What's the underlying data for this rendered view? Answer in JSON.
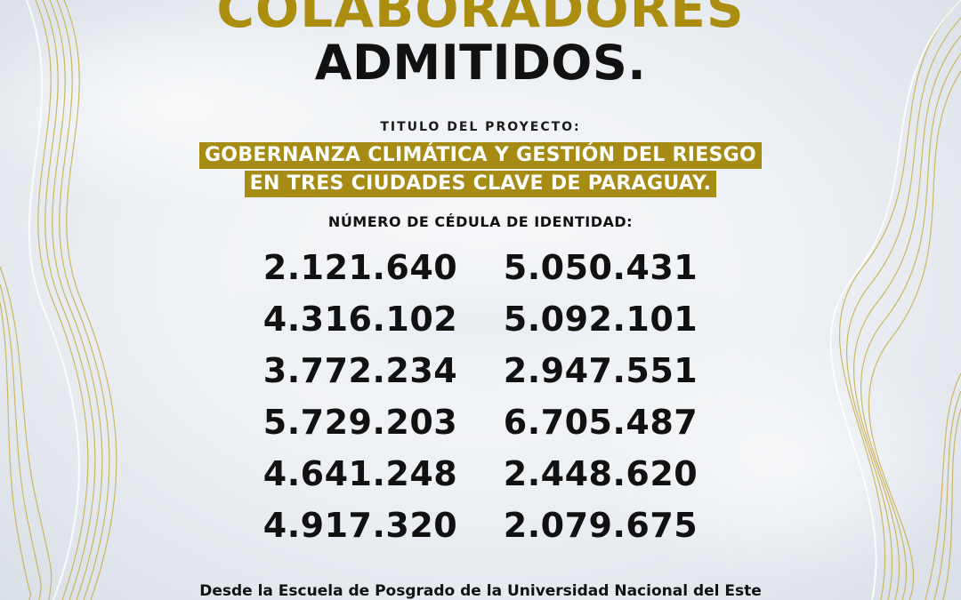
{
  "header": {
    "title_gold": "COLABORADORES",
    "title_black": "ADMITIDOS."
  },
  "project": {
    "label": "TITULO DEL PROYECTO:",
    "title_line1": "GOBERNANZA CLIMÁTICA Y GESTIÓN DEL RIESGO",
    "title_line2": "EN TRES CIUDADES CLAVE DE PARAGUAY."
  },
  "ids": {
    "label": "NÚMERO DE CÉDULA DE IDENTIDAD:",
    "rows": [
      [
        "2.121.640",
        "5.050.431"
      ],
      [
        "4.316.102",
        "5.092.101"
      ],
      [
        "3.772.234",
        "2.947.551"
      ],
      [
        "5.729.203",
        "6.705.487"
      ],
      [
        "4.641.248",
        "2.448.620"
      ],
      [
        "4.917.320",
        "2.079.675"
      ]
    ]
  },
  "footer": {
    "text": "Desde la Escuela de Posgrado de la Universidad Nacional del Este"
  },
  "colors": {
    "gold": "#ab8e0f",
    "gold_band": "#a68b14",
    "text_dark": "#111111",
    "background": "#eef1f4"
  }
}
